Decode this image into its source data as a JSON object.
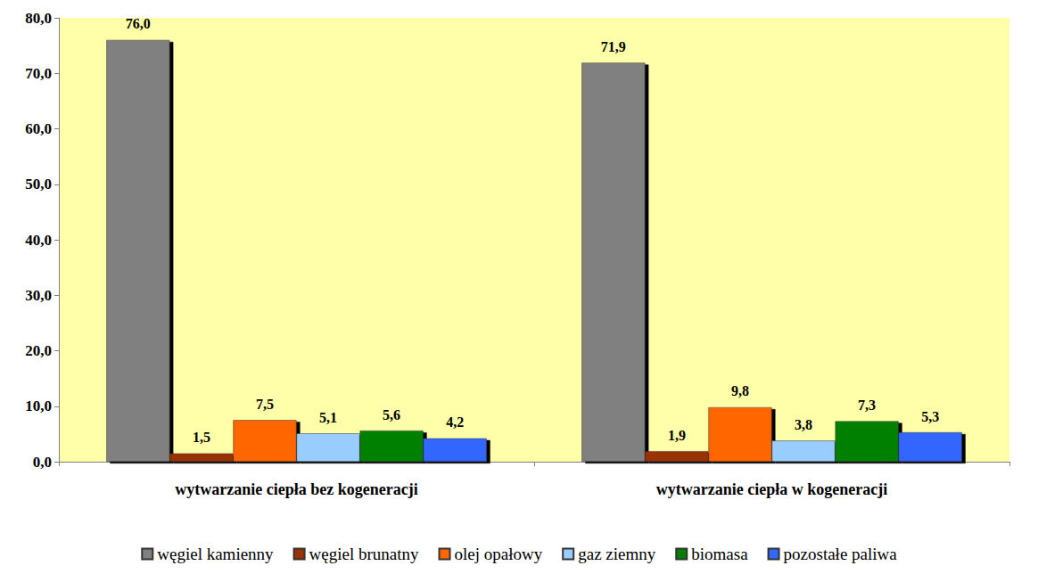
{
  "chart_data": {
    "type": "bar",
    "categories": [
      "wytwarzanie ciepła bez kogeneracji",
      "wytwarzanie ciepła w kogeneracji"
    ],
    "series": [
      {
        "name": "węgiel kamienny",
        "color": "#808080",
        "values": [
          76.0,
          71.9
        ],
        "value_labels": [
          "76,0",
          "71,9"
        ]
      },
      {
        "name": "węgiel brunatny",
        "color": "#993300",
        "values": [
          1.5,
          1.9
        ],
        "value_labels": [
          "1,5",
          "1,9"
        ]
      },
      {
        "name": "olej opałowy",
        "color": "#ff6600",
        "values": [
          7.5,
          9.8
        ],
        "value_labels": [
          "7,5",
          "9,8"
        ]
      },
      {
        "name": "gaz ziemny",
        "color": "#99ccff",
        "values": [
          5.1,
          3.8
        ],
        "value_labels": [
          "5,1",
          "3,8"
        ]
      },
      {
        "name": "biomasa",
        "color": "#008000",
        "values": [
          5.6,
          7.3
        ],
        "value_labels": [
          "5,6",
          "7,3"
        ]
      },
      {
        "name": "pozostałe paliwa",
        "color": "#3366ff",
        "values": [
          4.2,
          5.3
        ],
        "value_labels": [
          "4,2",
          "5,3"
        ]
      }
    ],
    "ylim": [
      0,
      80
    ],
    "yticks": [
      {
        "value": 0,
        "label": "0,0"
      },
      {
        "value": 10,
        "label": "10,0"
      },
      {
        "value": 20,
        "label": "20,0"
      },
      {
        "value": 30,
        "label": "30,0"
      },
      {
        "value": 40,
        "label": "40,0"
      },
      {
        "value": 50,
        "label": "50,0"
      },
      {
        "value": 60,
        "label": "60,0"
      },
      {
        "value": 70,
        "label": "70,0"
      },
      {
        "value": 80,
        "label": "80,0"
      }
    ],
    "grid": false,
    "legend": "bottom",
    "data_labels": true
  }
}
